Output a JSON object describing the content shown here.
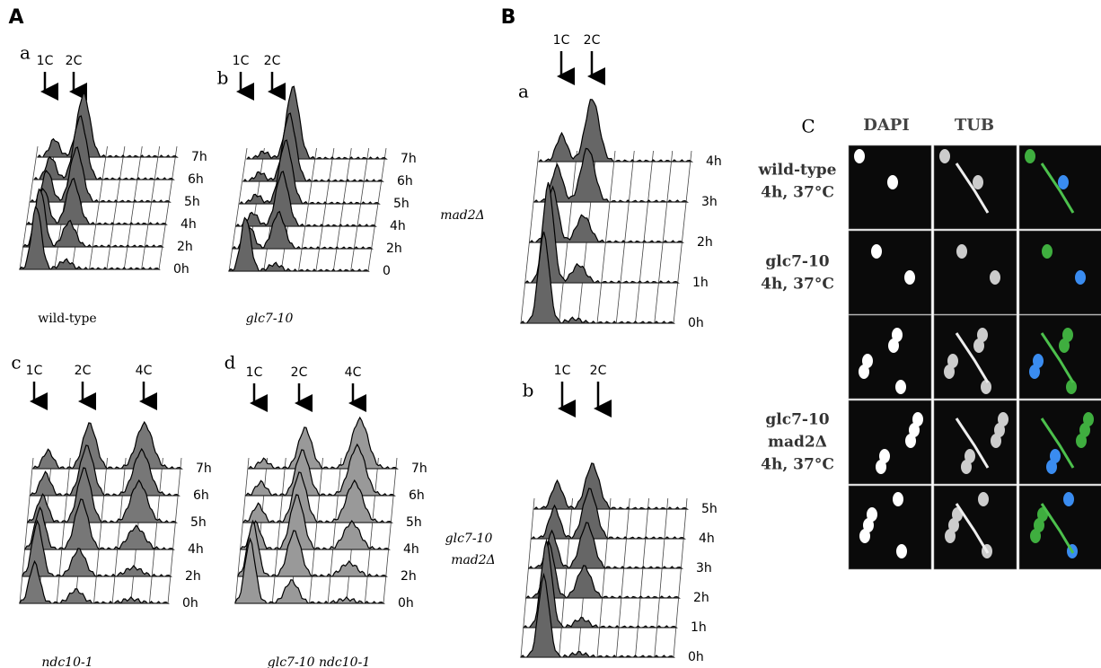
{
  "panel_A": {
    "label": "A",
    "plots": [
      {
        "label": "a",
        "peaks": [
          "1C",
          "2C"
        ],
        "times": [
          "0h",
          "2h",
          "4h",
          "5h",
          "6h",
          "7h"
        ],
        "caption": "wild-type"
      },
      {
        "label": "b",
        "peaks": [
          "1C",
          "2C"
        ],
        "times": [
          "0",
          "2h",
          "4h",
          "5h",
          "6h",
          "7h"
        ],
        "caption": "glc7-10"
      },
      {
        "label": "c",
        "peaks": [
          "1C",
          "2C",
          "4C"
        ],
        "times": [
          "0h",
          "2h",
          "4h",
          "5h",
          "6h",
          "7h"
        ],
        "caption": "ndc10-1"
      },
      {
        "label": "d",
        "peaks": [
          "1C",
          "2C",
          "4C"
        ],
        "times": [
          "0h",
          "2h",
          "4h",
          "5h",
          "6h",
          "7h"
        ],
        "caption": "glc7-10 ndc10-1"
      }
    ]
  },
  "panel_B": {
    "label": "B",
    "plots": [
      {
        "label": "a",
        "peaks": [
          "1C",
          "2C"
        ],
        "times": [
          "0h",
          "1h",
          "2h",
          "3h",
          "4h"
        ],
        "caption": [
          "mad2Δ"
        ]
      },
      {
        "label": "b",
        "peaks": [
          "1C",
          "2C"
        ],
        "times": [
          "0h",
          "1h",
          "2h",
          "3h",
          "4h",
          "5h"
        ],
        "caption": [
          "glc7-10",
          "mad2Δ"
        ]
      }
    ]
  },
  "panel_C": {
    "label": "C",
    "columns": [
      "DAPI",
      "TUB"
    ],
    "rows": [
      [
        "wild-type",
        "4h, 37°C"
      ],
      [
        "glc7-10",
        "4h, 37°C"
      ],
      [
        "glc7-10",
        "mad2Δ",
        "4h, 37°C"
      ]
    ]
  }
}
